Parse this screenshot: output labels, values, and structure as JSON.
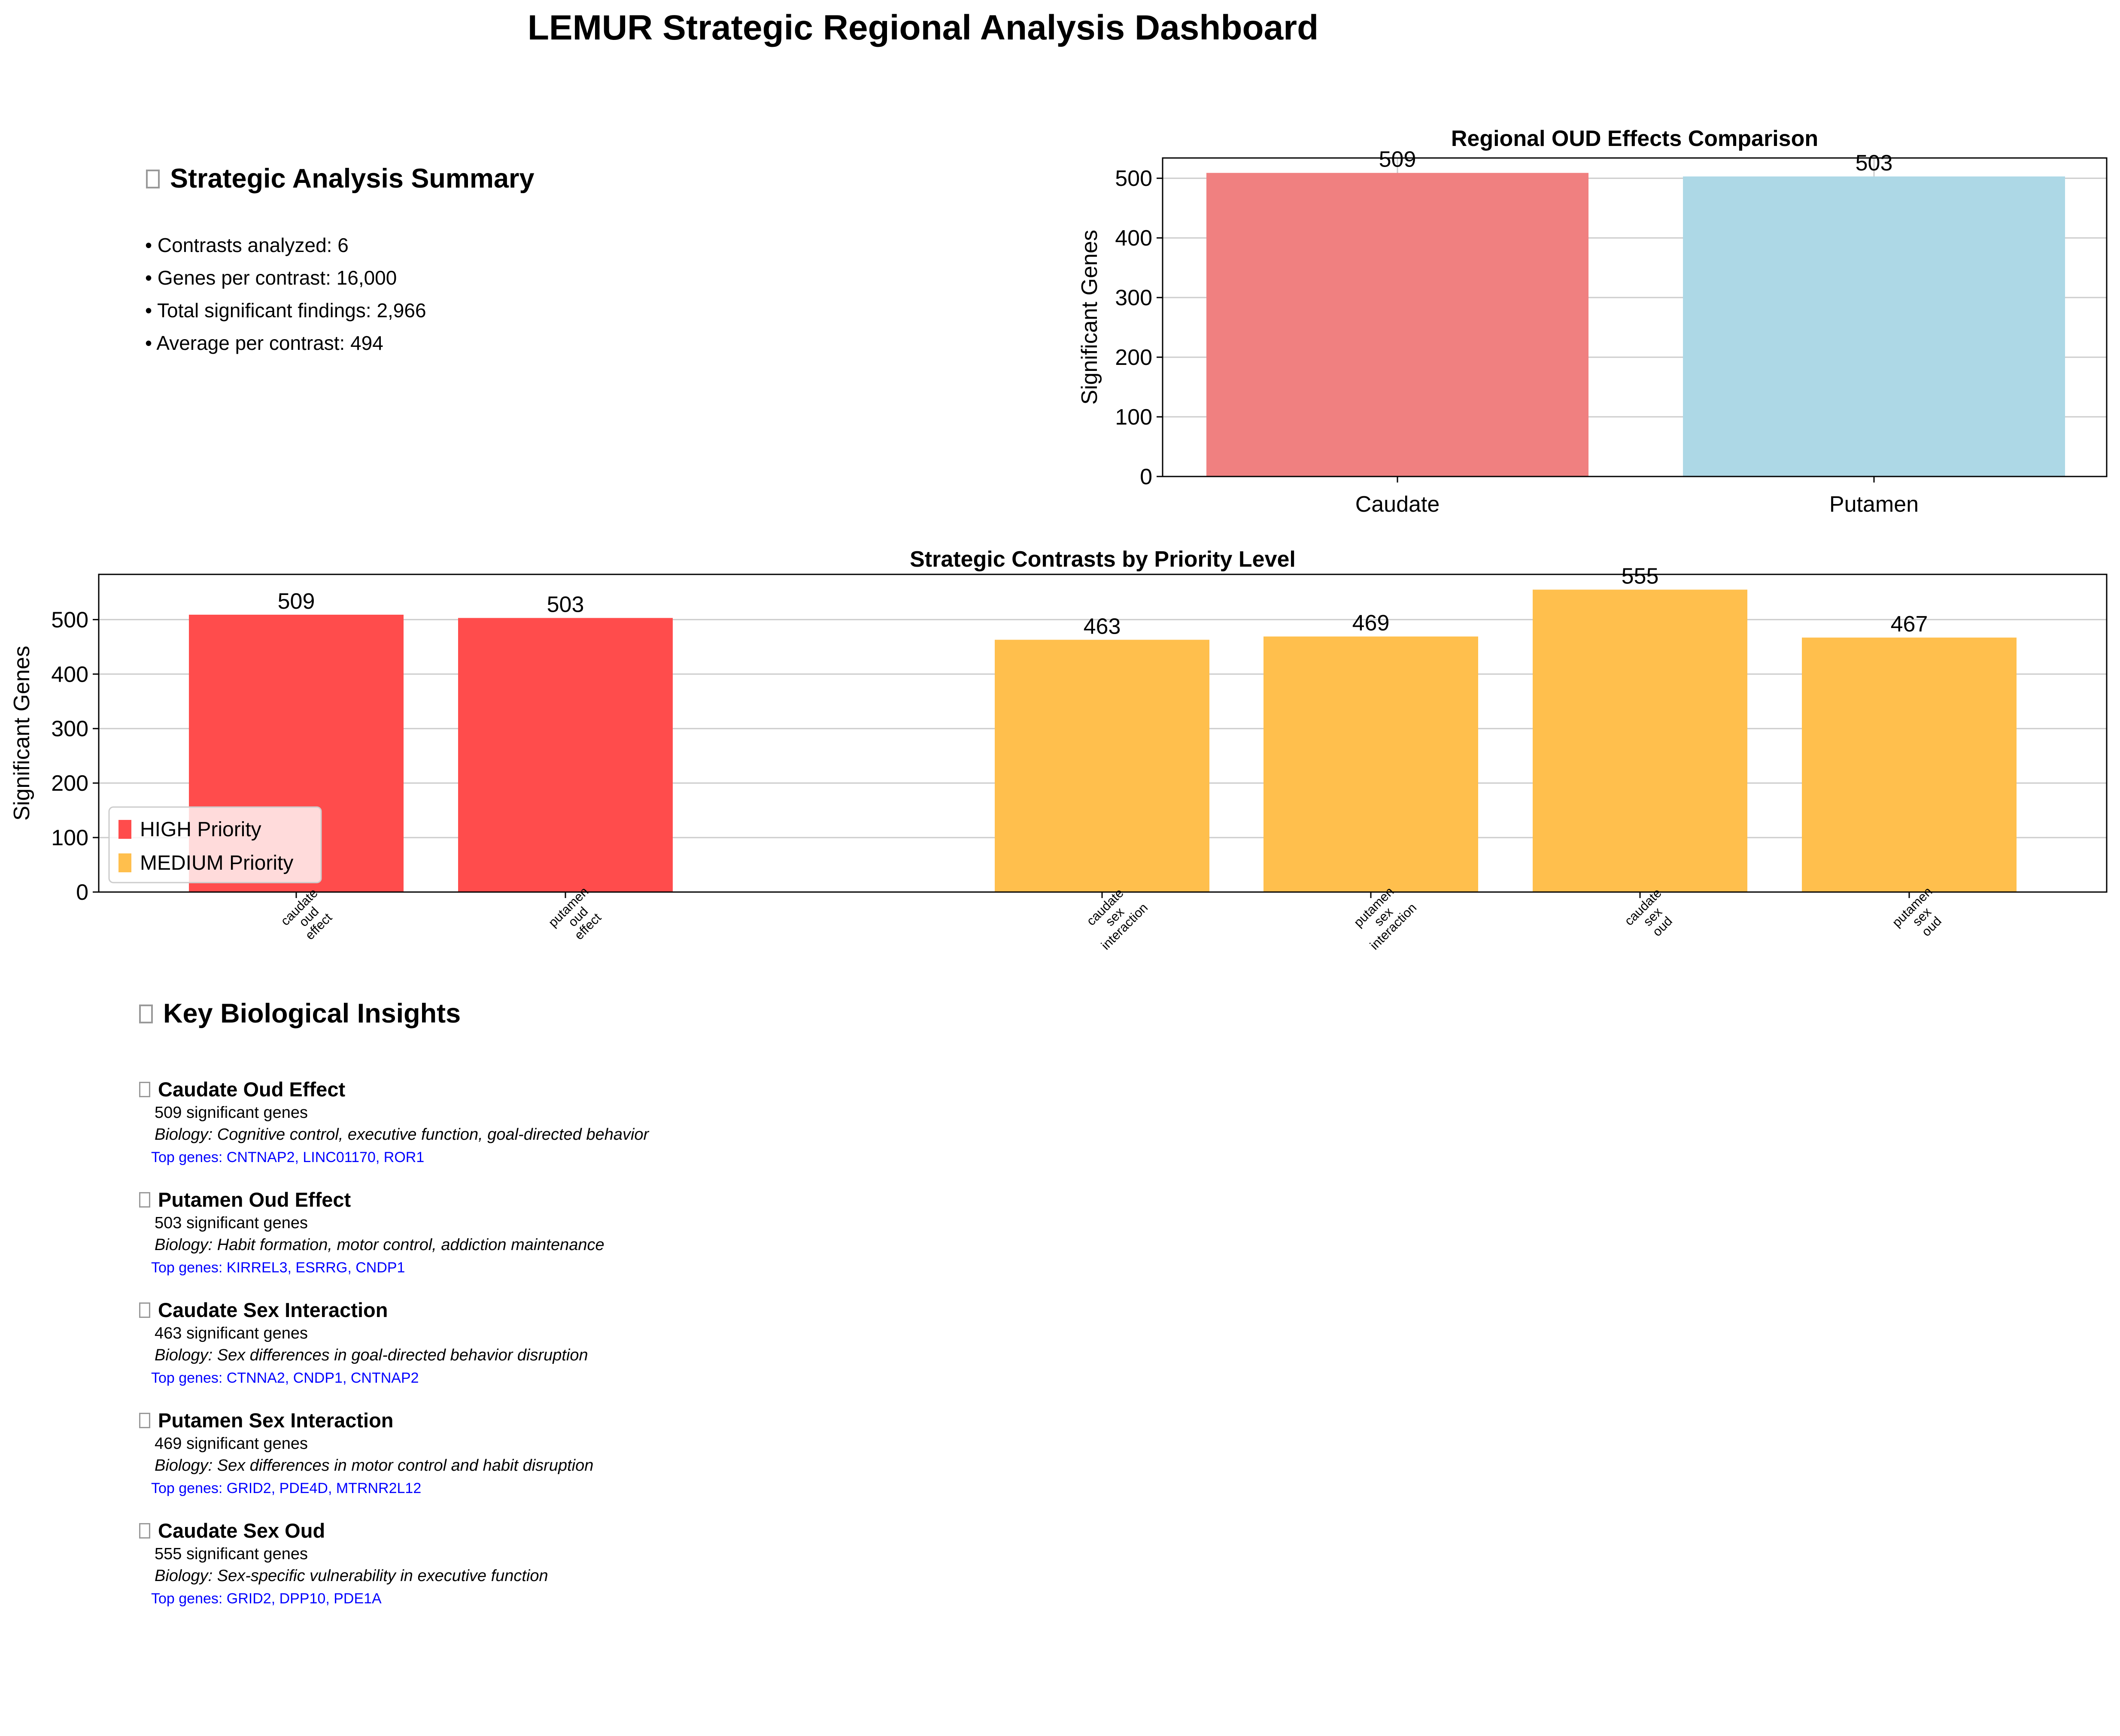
{
  "title": "LEMUR Strategic Regional Analysis Dashboard",
  "summary": {
    "title": "Strategic Analysis Summary",
    "items": [
      "• Contrasts analyzed: 6",
      "• Genes per contrast: 16,000",
      "• Total significant findings: 2,966",
      "• Average per contrast: 494"
    ]
  },
  "chart_data": [
    {
      "type": "bar",
      "title": "Regional OUD Effects Comparison",
      "ylabel": "Significant Genes",
      "categories": [
        "Caudate",
        "Putamen"
      ],
      "values": [
        509,
        503
      ],
      "colors": [
        "#f08080",
        "#add8e6"
      ],
      "ylim": [
        0,
        534
      ],
      "yticks": [
        0,
        100,
        200,
        300,
        400,
        500
      ],
      "grid": true
    },
    {
      "type": "bar",
      "title": "Strategic Contrasts by Priority Level",
      "ylabel": "Significant Genes",
      "categories": [
        "caudate\noud\neffect",
        "putamen\noud\neffect",
        "caudate\nsex\ninteraction",
        "putamen\nsex\ninteraction",
        "caudate\nsex\noud",
        "putamen\nsex\noud"
      ],
      "values": [
        509,
        503,
        463,
        469,
        555,
        467
      ],
      "priority": [
        "HIGH",
        "HIGH",
        "MEDIUM",
        "MEDIUM",
        "MEDIUM",
        "MEDIUM"
      ],
      "ylim": [
        0,
        583
      ],
      "yticks": [
        0,
        100,
        200,
        300,
        400,
        500
      ],
      "grid": true,
      "legend": {
        "placement": "lower-left",
        "entries": [
          {
            "label": "HIGH Priority",
            "color": "#ff4c4c"
          },
          {
            "label": "MEDIUM Priority",
            "color": "#ffbf4d"
          }
        ]
      }
    }
  ],
  "insights": {
    "title": "Key Biological Insights",
    "items": [
      {
        "title": "Caudate Oud Effect",
        "count": "509 significant genes",
        "biology": "Biology: Cognitive control, executive function, goal-directed behavior",
        "genes": "Top genes: CNTNAP2, LINC01170, ROR1"
      },
      {
        "title": "Putamen Oud Effect",
        "count": "503 significant genes",
        "biology": "Biology: Habit formation, motor control, addiction maintenance",
        "genes": "Top genes: KIRREL3, ESRRG, CNDP1"
      },
      {
        "title": "Caudate Sex Interaction",
        "count": "463 significant genes",
        "biology": "Biology: Sex differences in goal-directed behavior disruption",
        "genes": "Top genes: CTNNA2, CNDP1, CNTNAP2"
      },
      {
        "title": "Putamen Sex Interaction",
        "count": "469 significant genes",
        "biology": "Biology: Sex differences in motor control and habit disruption",
        "genes": "Top genes: GRID2, PDE4D, MTRNR2L12"
      },
      {
        "title": "Caudate Sex Oud",
        "count": "555 significant genes",
        "biology": "Biology: Sex-specific vulnerability in executive function",
        "genes": "Top genes: GRID2, DPP10, PDE1A"
      }
    ]
  }
}
